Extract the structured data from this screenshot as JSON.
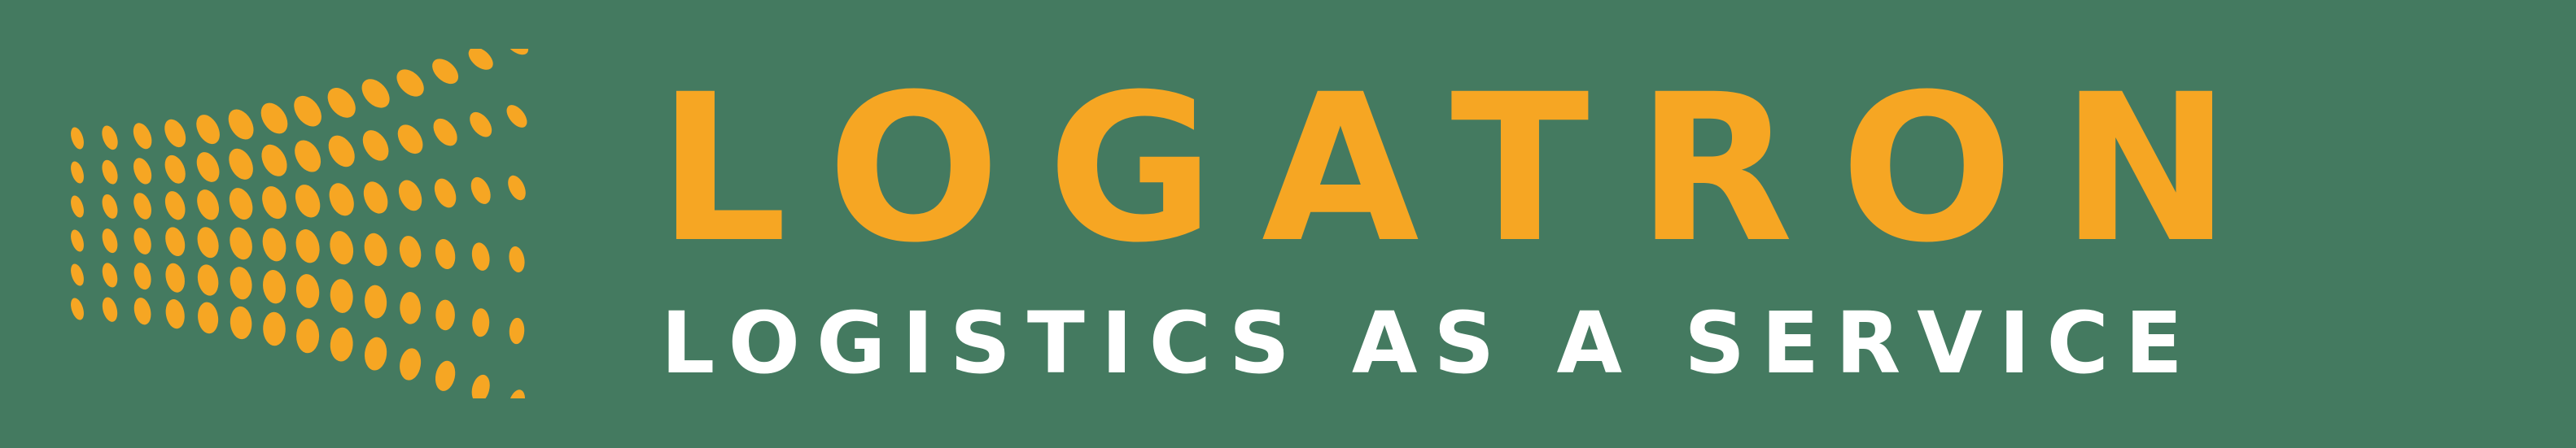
{
  "brand": {
    "name": "LOGATRON",
    "tagline": "LOGISTICS AS A SERVICE"
  },
  "colors": {
    "background": "#447a60",
    "accent": "#f6a623",
    "tagline_text": "#ffffff"
  },
  "icons": {
    "logo_mark": "dot-grid-wave-icon"
  }
}
